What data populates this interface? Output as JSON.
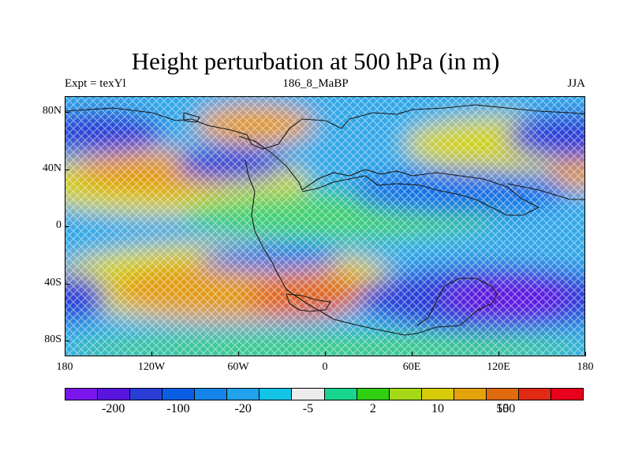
{
  "title": "Height perturbation at 500 hPa (in m)",
  "subtitle_left": "Expt = texYl",
  "subtitle_center": "186_8_MaBP",
  "subtitle_right": "JJA",
  "lat_labels": [
    "80N",
    "40N",
    "0",
    "40S",
    "80S"
  ],
  "lon_labels": [
    "180",
    "120W",
    "60W",
    "0",
    "60E",
    "120E",
    "180"
  ],
  "colorbar": {
    "colors": [
      "#7a15ec",
      "#5a14e0",
      "#2a3ed6",
      "#0a5ee4",
      "#1484e8",
      "#22a2ea",
      "#12c4e6",
      "#ececec",
      "#18d690",
      "#30d010",
      "#a6d818",
      "#d6cc0a",
      "#e4a20a",
      "#e06a0c",
      "#e02a14",
      "#e8001c"
    ],
    "labels": [
      "-200",
      "-100",
      "-20",
      "-5",
      "2",
      "10",
      "50",
      "150"
    ]
  },
  "map_colors": {
    "deep_blue": "#2a3ed6",
    "mid_blue": "#1270e6",
    "light_blue": "#30a8e8",
    "green": "#40d070",
    "yellow": "#cfd018",
    "orange": "#e29a14",
    "red_orange": "#e0621a",
    "purple": "#6018e0",
    "coast": "#1a1a1a"
  }
}
